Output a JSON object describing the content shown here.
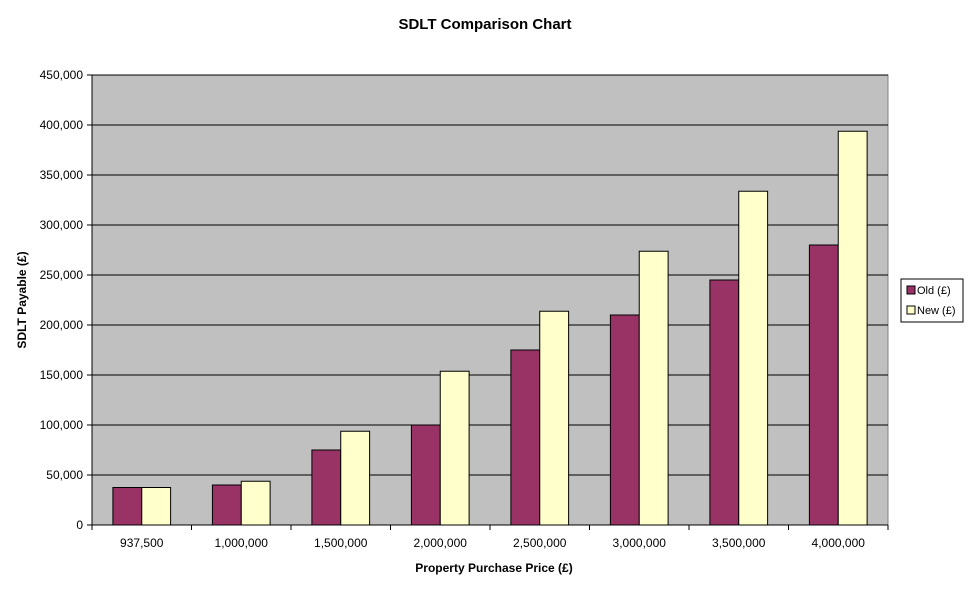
{
  "chart_data": {
    "type": "bar",
    "title": "SDLT Comparison Chart",
    "xlabel": "Property Purchase Price (£)",
    "ylabel": "SDLT Payable (£)",
    "ylim": [
      0,
      450000
    ],
    "y_ticks": [
      0,
      50000,
      100000,
      150000,
      200000,
      250000,
      300000,
      350000,
      400000,
      450000
    ],
    "y_tick_labels": [
      "0",
      "50,000",
      "100,000",
      "150,000",
      "200,000",
      "250,000",
      "300,000",
      "350,000",
      "400,000",
      "450,000"
    ],
    "categories": [
      "937,500",
      "1,000,000",
      "1,500,000",
      "2,000,000",
      "2,500,000",
      "3,000,000",
      "3,500,000",
      "4,000,000"
    ],
    "series": [
      {
        "name": "Old (£)",
        "color": "#993366",
        "values": [
          37500,
          40000,
          75000,
          100000,
          175000,
          210000,
          245000,
          280000
        ]
      },
      {
        "name": "New (£)",
        "color": "#FFFFCC",
        "values": [
          37500,
          43750,
          93750,
          153750,
          213750,
          273750,
          333750,
          393750
        ]
      }
    ],
    "plot_background": "#C0C0C0",
    "grid": true,
    "legend_position": "right"
  }
}
